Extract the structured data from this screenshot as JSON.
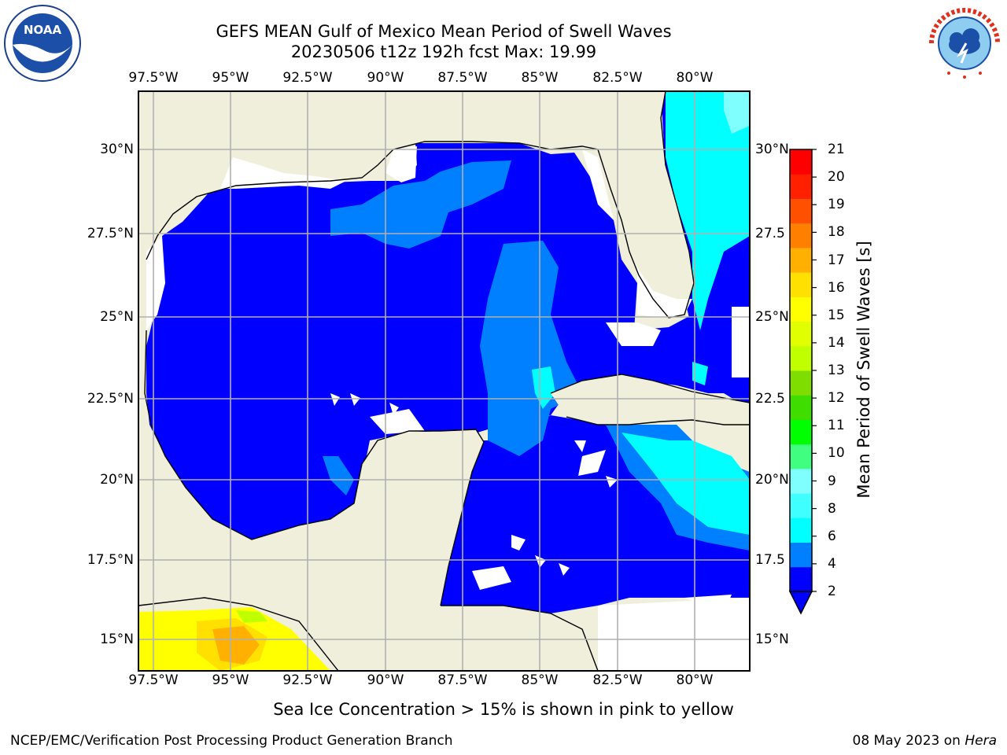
{
  "header": {
    "title_line1": "GEFS MEAN Gulf of Mexico Mean Period of Swell Waves",
    "title_line2": "20230506 t12z 192h fcst   Max: 19.99"
  },
  "map": {
    "lon_labels": [
      "97.5°W",
      "95°W",
      "92.5°W",
      "90°W",
      "87.5°W",
      "85°W",
      "82.5°W",
      "80°W"
    ],
    "lat_labels_left": [
      "30°N",
      "27.5°N",
      "25°N",
      "22.5°N",
      "20°N",
      "17.5°N",
      "15°N"
    ],
    "lat_labels_right": [
      "30°N",
      "27.5",
      "25°N",
      "22.5",
      "20°N",
      "17.5",
      "15°N"
    ],
    "colors": {
      "land": "#efefdc",
      "sea_level_1": "#0000ff",
      "sea_level_2": "#0080ff",
      "sea_level_3": "#00ffff",
      "grid": "#b0b0b0"
    }
  },
  "colorbar": {
    "title": "Mean Period of Swell Waves [s]",
    "ticks": [
      "21",
      "20",
      "19",
      "18",
      "17",
      "16",
      "15",
      "14",
      "13",
      "12",
      "11",
      "10",
      "9",
      "8",
      "6",
      "4",
      "2"
    ],
    "colors": [
      "#0000ff",
      "#0080ff",
      "#00ffff",
      "#40ffff",
      "#80ffff",
      "#40ff80",
      "#00ff00",
      "#40dd00",
      "#80dd00",
      "#c0ff00",
      "#e0ff00",
      "#ffff00",
      "#ffe000",
      "#ffb000",
      "#ff8000",
      "#ff5000",
      "#ff2000",
      "#ff0000"
    ]
  },
  "note": "Sea Ice Concentration > 15% is shown in pink to yellow",
  "footer": {
    "left": "NCEP/EMC/Verification Post Processing Product Generation Branch",
    "date": "08 May 2023 on ",
    "host": "Hera"
  },
  "icons": {
    "left_logo": "noaa-logo-icon",
    "right_logo": "nws-logo-icon"
  }
}
